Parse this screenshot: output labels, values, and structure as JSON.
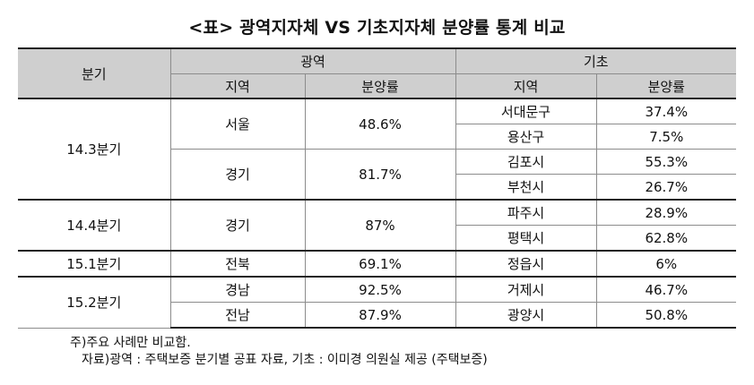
{
  "title": "<표> 광역지자체 VS 기초지자체 분양률 통계 비교",
  "headers": {
    "quarter": "분기",
    "metro": "광역",
    "basic": "기초",
    "region": "지역",
    "rate": "분양률"
  },
  "groups": [
    {
      "quarter": "14.3분기",
      "metro": [
        {
          "region": "서울",
          "rate": "48.6%"
        },
        {
          "region": "경기",
          "rate": "81.7%"
        }
      ],
      "basic": [
        {
          "region": "서대문구",
          "rate": "37.4%"
        },
        {
          "region": "용산구",
          "rate": "7.5%"
        },
        {
          "region": "김포시",
          "rate": "55.3%"
        },
        {
          "region": "부천시",
          "rate": "26.7%"
        }
      ]
    },
    {
      "quarter": "14.4분기",
      "metro": [
        {
          "region": "경기",
          "rate": "87%"
        }
      ],
      "basic": [
        {
          "region": "파주시",
          "rate": "28.9%"
        },
        {
          "region": "평택시",
          "rate": "62.8%"
        }
      ]
    },
    {
      "quarter": "15.1분기",
      "metro": [
        {
          "region": "전북",
          "rate": "69.1%"
        }
      ],
      "basic": [
        {
          "region": "정읍시",
          "rate": "6%"
        }
      ]
    },
    {
      "quarter": "15.2분기",
      "metro": [
        {
          "region": "경남",
          "rate": "92.5%"
        },
        {
          "region": "전남",
          "rate": "87.9%"
        }
      ],
      "basic": [
        {
          "region": "거제시",
          "rate": "46.7%"
        },
        {
          "region": "광양시",
          "rate": "50.8%"
        }
      ]
    }
  ],
  "notes": {
    "line1": "주)주요 사례만 비교함.",
    "line2": "자료)광역 : 주택보증 분기별 공표 자료, 기초 : 이미경 의원실 제공 (주택보증)"
  }
}
